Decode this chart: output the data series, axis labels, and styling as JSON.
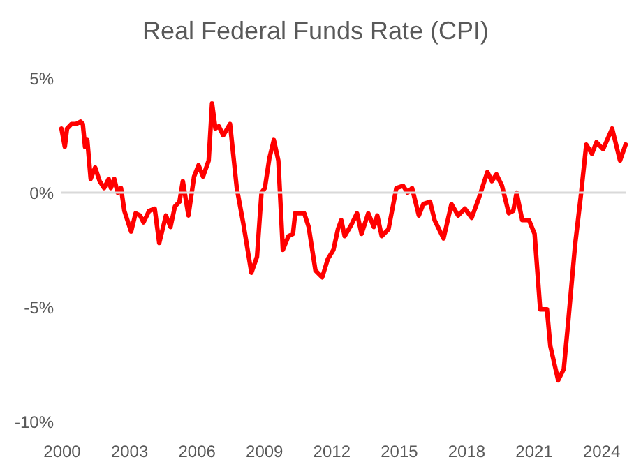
{
  "chart_data": {
    "type": "line",
    "title": "Real Federal Funds Rate (CPI)",
    "x": [
      2000.0,
      2000.15,
      2000.25,
      2000.45,
      2000.65,
      2000.85,
      2000.95,
      2001.05,
      2001.15,
      2001.3,
      2001.5,
      2001.7,
      2001.9,
      2002.1,
      2002.2,
      2002.35,
      2002.5,
      2002.65,
      2002.8,
      2003.1,
      2003.3,
      2003.5,
      2003.65,
      2003.9,
      2004.15,
      2004.35,
      2004.65,
      2004.85,
      2005.05,
      2005.25,
      2005.4,
      2005.65,
      2005.9,
      2006.1,
      2006.3,
      2006.55,
      2006.7,
      2006.85,
      2007.0,
      2007.2,
      2007.5,
      2007.8,
      2008.1,
      2008.45,
      2008.7,
      2008.9,
      2009.05,
      2009.25,
      2009.45,
      2009.65,
      2009.85,
      2010.1,
      2010.3,
      2010.4,
      2010.8,
      2011.0,
      2011.3,
      2011.6,
      2011.85,
      2012.1,
      2012.3,
      2012.45,
      2012.6,
      2012.9,
      2013.15,
      2013.35,
      2013.65,
      2013.9,
      2014.05,
      2014.25,
      2014.55,
      2014.9,
      2015.2,
      2015.4,
      2015.6,
      2015.9,
      2016.1,
      2016.4,
      2016.6,
      2017.0,
      2017.35,
      2017.65,
      2017.95,
      2018.25,
      2018.55,
      2018.95,
      2019.15,
      2019.35,
      2019.6,
      2019.9,
      2020.1,
      2020.25,
      2020.5,
      2020.8,
      2021.05,
      2021.3,
      2021.6,
      2021.75,
      2022.1,
      2022.35,
      2022.55,
      2022.85,
      2023.1,
      2023.35,
      2023.6,
      2023.8,
      2024.1,
      2024.5,
      2024.85,
      2025.1
    ],
    "series": [
      {
        "color": "#ff0000",
        "values": [
          2.8,
          2.0,
          2.8,
          3.0,
          3.0,
          3.1,
          3.0,
          2.0,
          2.3,
          0.6,
          1.1,
          0.5,
          0.2,
          0.6,
          0.2,
          0.6,
          0.0,
          0.2,
          -0.8,
          -1.7,
          -0.9,
          -1.0,
          -1.3,
          -0.8,
          -0.7,
          -2.2,
          -1.0,
          -1.5,
          -0.6,
          -0.4,
          0.5,
          -1.0,
          0.7,
          1.2,
          0.7,
          1.4,
          3.9,
          2.8,
          2.9,
          2.5,
          3.0,
          0.2,
          -1.4,
          -3.5,
          -2.8,
          0.0,
          0.2,
          1.5,
          2.3,
          1.4,
          -2.5,
          -1.9,
          -1.8,
          -0.9,
          -0.9,
          -1.5,
          -3.4,
          -3.7,
          -2.9,
          -2.5,
          -1.6,
          -1.2,
          -1.9,
          -1.4,
          -0.9,
          -1.8,
          -0.9,
          -1.5,
          -1.0,
          -1.9,
          -1.6,
          0.2,
          0.3,
          0.0,
          0.2,
          -1.0,
          -0.5,
          -0.4,
          -1.2,
          -2.0,
          -0.5,
          -1.0,
          -0.7,
          -1.1,
          -0.3,
          0.9,
          0.5,
          0.8,
          0.3,
          -0.9,
          -0.8,
          0.0,
          -1.2,
          -1.2,
          -1.8,
          -5.1,
          -5.1,
          -6.7,
          -8.2,
          -7.7,
          -5.6,
          -2.3,
          -0.2,
          2.1,
          1.7,
          2.2,
          1.9,
          2.8,
          1.4,
          2.1
        ]
      }
    ],
    "xlim": [
      2000,
      2025.1
    ],
    "xticks": [
      2000,
      2003,
      2006,
      2009,
      2012,
      2015,
      2018,
      2021,
      2024
    ],
    "ylim": [
      -10,
      5
    ],
    "yticks": [
      {
        "value": -10,
        "label": "-10%"
      },
      {
        "value": -5,
        "label": "-5%"
      },
      {
        "value": 0,
        "label": "0%"
      },
      {
        "value": 5,
        "label": "5%"
      }
    ],
    "ref_lines": [
      {
        "axis": "y",
        "value": 0,
        "color": "#d9d9d9"
      }
    ],
    "grid": false
  }
}
